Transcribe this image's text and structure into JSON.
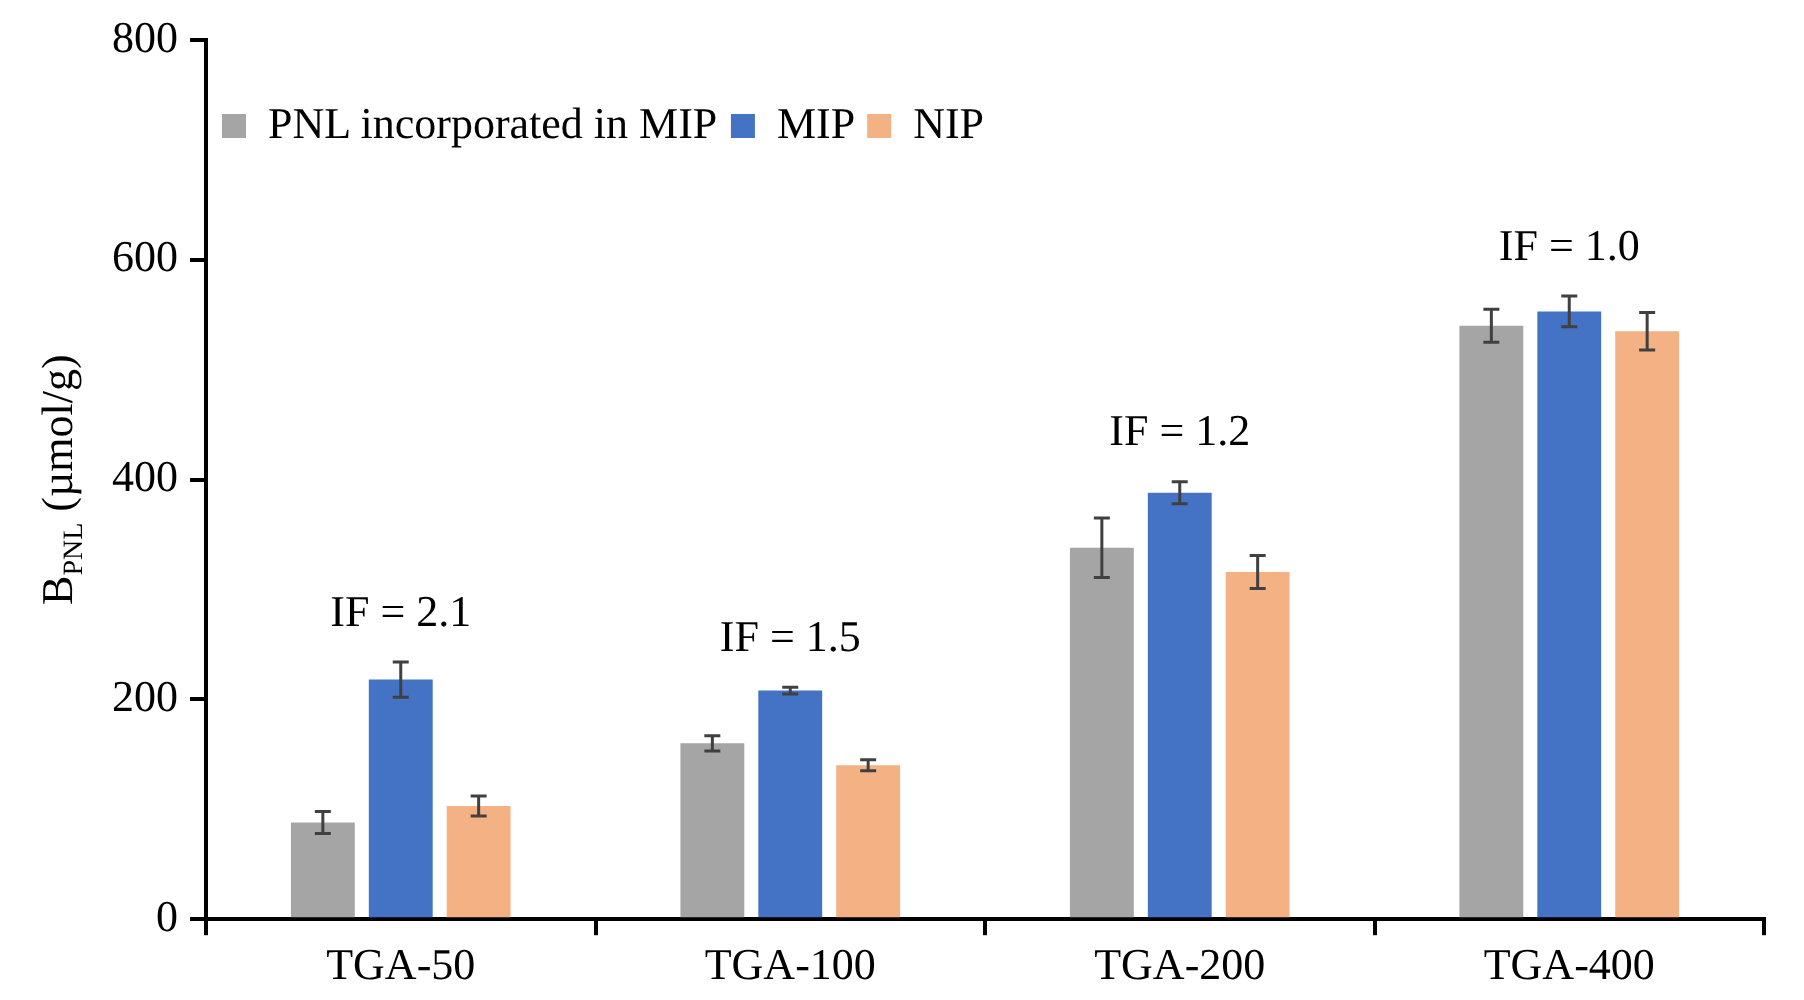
{
  "chart_data": {
    "type": "bar",
    "ylabel": "B$_{PNL}$ (µmol/g)",
    "categories": [
      "TGA-50",
      "TGA-100",
      "TGA-200",
      "TGA-400"
    ],
    "series": [
      {
        "name": "PNL incorporated in MIP",
        "color": "#a5a5a5",
        "values": [
          88,
          160,
          338,
          540
        ],
        "errors": [
          10,
          7,
          27,
          15
        ]
      },
      {
        "name": "MIP",
        "color": "#4472c4",
        "values": [
          218,
          208,
          388,
          553
        ],
        "errors": [
          16,
          3,
          10,
          14
        ]
      },
      {
        "name": "NIP",
        "color": "#f4b183",
        "values": [
          103,
          140,
          316,
          535
        ],
        "errors": [
          9,
          5,
          15,
          17
        ]
      }
    ],
    "ylim": [
      0,
      800
    ],
    "yticks": [
      0,
      200,
      400,
      600,
      800
    ],
    "grid": false,
    "legend": "top left",
    "annotations": [
      "IF = 2.1",
      "IF = 1.5",
      "IF = 1.2",
      "IF = 1.0"
    ]
  }
}
